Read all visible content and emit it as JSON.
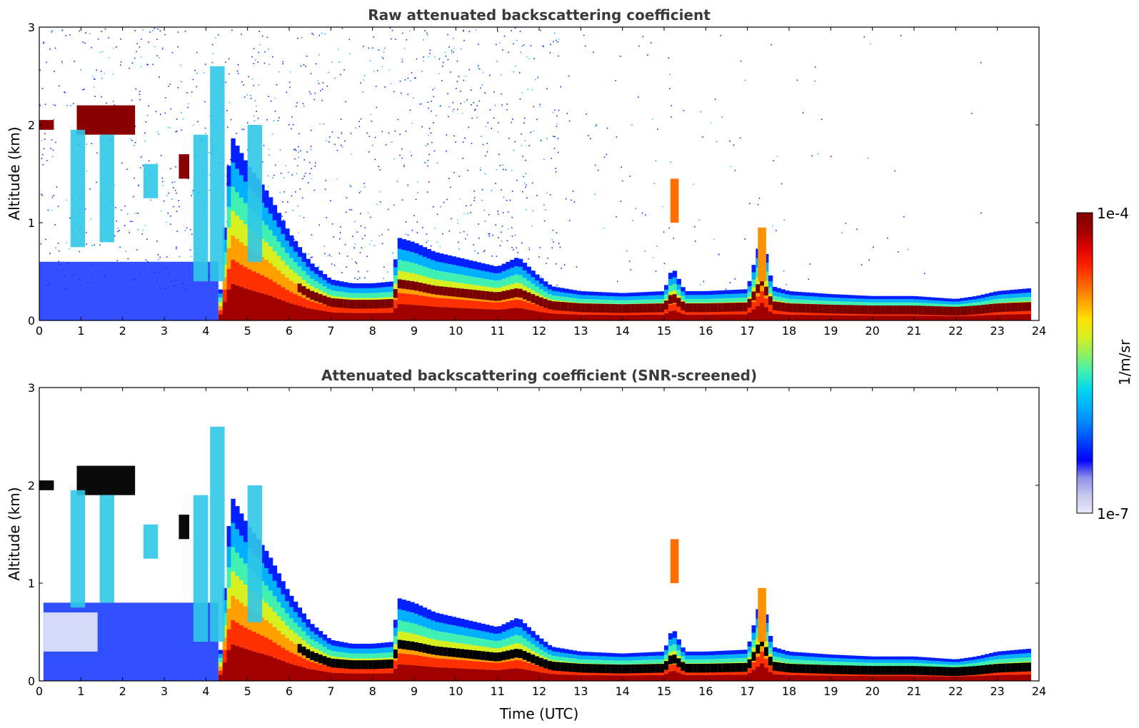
{
  "chart_data": [
    {
      "type": "heatmap",
      "title": "Raw attenuated backscattering coefficient",
      "xlabel": "",
      "ylabel": "Altitude (km)",
      "xlim": [
        0,
        24
      ],
      "ylim": [
        0,
        3
      ],
      "xticks": [
        "0",
        "1",
        "2",
        "3",
        "4",
        "5",
        "6",
        "7",
        "8",
        "9",
        "10",
        "11",
        "12",
        "13",
        "14",
        "15",
        "16",
        "17",
        "18",
        "19",
        "20",
        "21",
        "22",
        "23",
        "24"
      ],
      "yticks": [
        "0",
        "1",
        "2",
        "3"
      ],
      "grid": false,
      "features": {
        "boundary_layer_top_km": [
          [
            0.0,
            0.0
          ],
          [
            4.3,
            0.0
          ],
          [
            4.6,
            1.9
          ],
          [
            5.0,
            1.6
          ],
          [
            5.5,
            1.3
          ],
          [
            6.0,
            0.9
          ],
          [
            6.5,
            0.6
          ],
          [
            7.0,
            0.42
          ],
          [
            7.5,
            0.38
          ],
          [
            8.0,
            0.38
          ],
          [
            8.5,
            0.4
          ],
          [
            8.6,
            0.85
          ],
          [
            9.0,
            0.8
          ],
          [
            9.5,
            0.7
          ],
          [
            10.0,
            0.65
          ],
          [
            10.5,
            0.6
          ],
          [
            11.0,
            0.55
          ],
          [
            11.5,
            0.65
          ],
          [
            12.0,
            0.45
          ],
          [
            12.3,
            0.35
          ],
          [
            13.0,
            0.3
          ],
          [
            14.0,
            0.28
          ],
          [
            15.0,
            0.3
          ],
          [
            15.2,
            0.55
          ],
          [
            15.5,
            0.3
          ],
          [
            16.0,
            0.3
          ],
          [
            17.0,
            0.32
          ],
          [
            17.35,
            0.9
          ],
          [
            17.6,
            0.35
          ],
          [
            18.0,
            0.3
          ],
          [
            19.0,
            0.27
          ],
          [
            20.0,
            0.25
          ],
          [
            21.0,
            0.25
          ],
          [
            22.0,
            0.22
          ],
          [
            22.5,
            0.25
          ],
          [
            23.0,
            0.3
          ],
          [
            23.8,
            0.33
          ]
        ],
        "cloud_layer_km": {
          "x_start": 0.0,
          "x_end": 2.3,
          "altitude": 2.0
        },
        "colorbar": {
          "min": "1e-7",
          "max": "1e-4",
          "scale": "log",
          "label": "1/m/sr"
        }
      }
    },
    {
      "type": "heatmap",
      "title": "Attenuated backscattering coefficient (SNR-screened)",
      "xlabel": "Time (UTC)",
      "ylabel": "Altitude (km)",
      "xlim": [
        0,
        24
      ],
      "ylim": [
        0,
        3
      ],
      "xticks": [
        "0",
        "1",
        "2",
        "3",
        "4",
        "5",
        "6",
        "7",
        "8",
        "9",
        "10",
        "11",
        "12",
        "13",
        "14",
        "15",
        "16",
        "17",
        "18",
        "19",
        "20",
        "21",
        "22",
        "23",
        "24"
      ],
      "yticks": [
        "0",
        "1",
        "2",
        "3"
      ],
      "grid": false,
      "features": {
        "saturated_values_color": "#000000",
        "colorbar": {
          "min": "1e-7",
          "max": "1e-4",
          "scale": "log",
          "label": "1/m/sr"
        }
      }
    }
  ],
  "colorbar": {
    "max_label": "1e-4",
    "min_label": "1e-7",
    "unit_label": "1/m/sr",
    "colors": [
      "#e8e8f8",
      "#c8c8f0",
      "#9090e8",
      "#0000ff",
      "#0040ff",
      "#0080ff",
      "#00b0ff",
      "#00d8f0",
      "#40f0b0",
      "#90f060",
      "#d8f020",
      "#ffe000",
      "#ffa000",
      "#ff6000",
      "#ff2000",
      "#e00000",
      "#a00000",
      "#800000"
    ]
  }
}
